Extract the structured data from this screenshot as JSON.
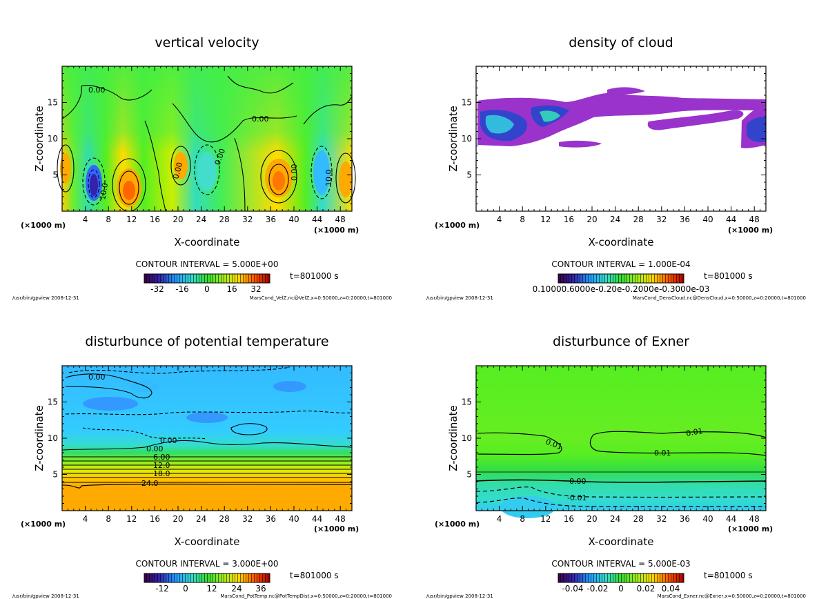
{
  "chart_data": [
    {
      "type": "heatmap",
      "title": "vertical velocity",
      "xlabel": "X-coordinate",
      "ylabel": "Z-coordinate",
      "x_unit": "(×1000 m)",
      "x_ticks": [
        "4",
        "8",
        "12",
        "16",
        "20",
        "24",
        "28",
        "32",
        "36",
        "40",
        "44",
        "48"
      ],
      "y_ticks": [
        "5",
        "10",
        "15"
      ],
      "xlim": [
        0,
        50
      ],
      "ylim": [
        0,
        20
      ],
      "contour_interval": "CONTOUR INTERVAL = 5.000E+00",
      "colorbar_ticks": [
        "-32",
        "-16",
        "0",
        "16",
        "32"
      ],
      "time": "t=801000 s",
      "footer_left": "/usr/bin/gpview  2008-12-31",
      "footer_right": "MarsCond_VelZ.nc@VelZ,x=0:50000,z=0:20000,t=801000",
      "contour_labels": [
        "0.00",
        "0.00",
        "0.00",
        "0.00",
        "0.00",
        "10.0",
        "10.0",
        "0.00",
        "0.00"
      ],
      "background": "#33dd33"
    },
    {
      "type": "heatmap",
      "title": "density of cloud",
      "xlabel": "X-coordinate",
      "ylabel": "Z-coordinate",
      "x_unit": "(×1000 m)",
      "x_ticks": [
        "4",
        "8",
        "12",
        "16",
        "20",
        "24",
        "28",
        "32",
        "36",
        "40",
        "44",
        "48"
      ],
      "y_ticks": [
        "5",
        "10",
        "15"
      ],
      "xlim": [
        0,
        50
      ],
      "ylim": [
        0,
        20
      ],
      "contour_interval": "CONTOUR INTERVAL = 1.000E-04",
      "colorbar_ticks": [
        "0.10000.6000e-0.20e-0.2000e-0.3000e-03"
      ],
      "time": "t=801000 s",
      "footer_left": "/usr/bin/gpview  2008-12-31",
      "footer_right": "MarsCond_DensCloud.nc@DensCloud,x=0:50000,z=0:20000,t=801000",
      "background": "#ffffff"
    },
    {
      "type": "heatmap",
      "title": "disturbunce of potential temperature",
      "xlabel": "X-coordinate",
      "ylabel": "Z-coordinate",
      "x_unit": "(×1000 m)",
      "x_ticks": [
        "4",
        "8",
        "12",
        "16",
        "20",
        "24",
        "28",
        "32",
        "36",
        "40",
        "44",
        "48"
      ],
      "y_ticks": [
        "5",
        "10",
        "15"
      ],
      "xlim": [
        0,
        50
      ],
      "ylim": [
        0,
        20
      ],
      "contour_interval": "CONTOUR INTERVAL = 3.000E+00",
      "colorbar_ticks": [
        "-12",
        "0",
        "12",
        "24",
        "36"
      ],
      "time": "t=801000 s",
      "footer_left": "/usr/bin/gpview  2008-12-31",
      "footer_right": "MarsCond_PotTemp.nc@PotTempDist,x=0:50000,z=0:20000,t=801000",
      "contour_labels": [
        "0.00",
        "0.00",
        "0.00",
        "6.00",
        "12.0",
        "18.0",
        "24.0"
      ],
      "background": "#33ccff"
    },
    {
      "type": "heatmap",
      "title": "disturbunce of Exner",
      "xlabel": "X-coordinate",
      "ylabel": "Z-coordinate",
      "x_unit": "(×1000 m)",
      "x_ticks": [
        "4",
        "8",
        "12",
        "16",
        "20",
        "24",
        "28",
        "32",
        "36",
        "40",
        "44",
        "48"
      ],
      "y_ticks": [
        "5",
        "10",
        "15"
      ],
      "xlim": [
        0,
        50
      ],
      "ylim": [
        0,
        20
      ],
      "contour_interval": "CONTOUR INTERVAL = 5.000E-03",
      "colorbar_ticks": [
        "-0.04",
        "-0.02",
        "0",
        "0.02",
        "0.04"
      ],
      "time": "t=801000 s",
      "footer_left": "/usr/bin/gpview  2008-12-31",
      "footer_right": "MarsCond_Exner.nc@Exner,x=0:50000,z=0:20000,t=801000",
      "contour_labels": [
        "0.01",
        "0.01",
        "0.01",
        "0.00",
        "-0.01"
      ],
      "background": "#55ee22"
    }
  ]
}
